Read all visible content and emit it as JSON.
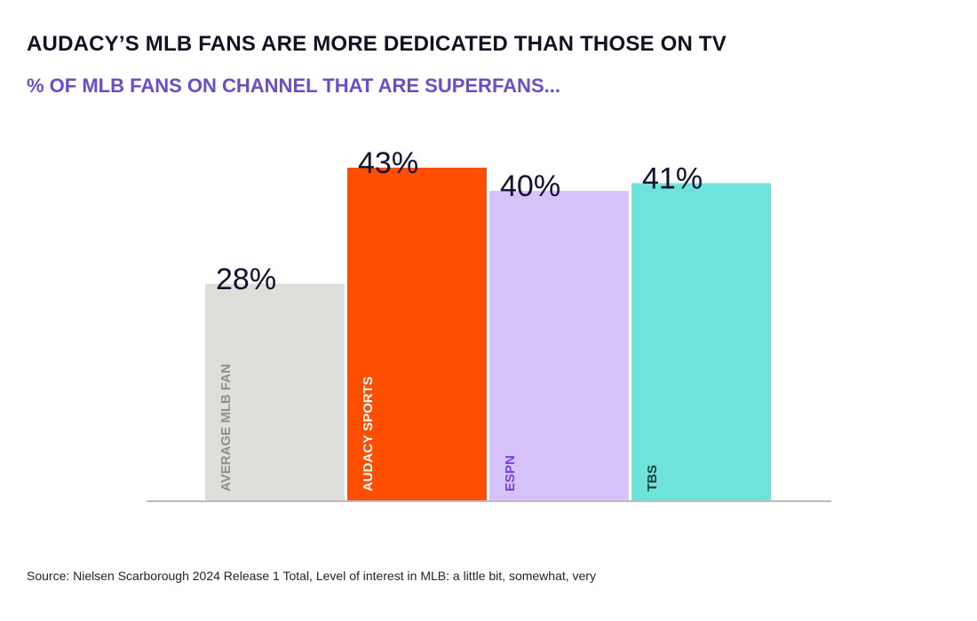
{
  "title": "AUDACY’S MLB FANS ARE MORE DEDICATED THAN THOSE ON TV",
  "subtitle": "% OF MLB FANS ON CHANNEL THAT ARE SUPERFANS...",
  "source": "Source: Nielsen Scarborough 2024 Release 1 Total, Level of interest in MLB: a little bit, somewhat, very",
  "chart_data": {
    "type": "bar",
    "categories": [
      "AVERAGE MLB FAN",
      "AUDACY SPORTS",
      "ESPN",
      "TBS"
    ],
    "values": [
      28,
      43,
      40,
      41
    ],
    "value_labels": [
      "28%",
      "43%",
      "40%",
      "41%"
    ],
    "colors": [
      "#e0dedb",
      "#ff4e00",
      "#d4c2f8",
      "#6de3dc"
    ],
    "category_label_colors": [
      "#8f8f8f",
      "#ffffff",
      "#7b3fe4",
      "#1a3a38"
    ],
    "ylim": [
      0,
      43
    ],
    "grid": false,
    "legend": "none"
  }
}
